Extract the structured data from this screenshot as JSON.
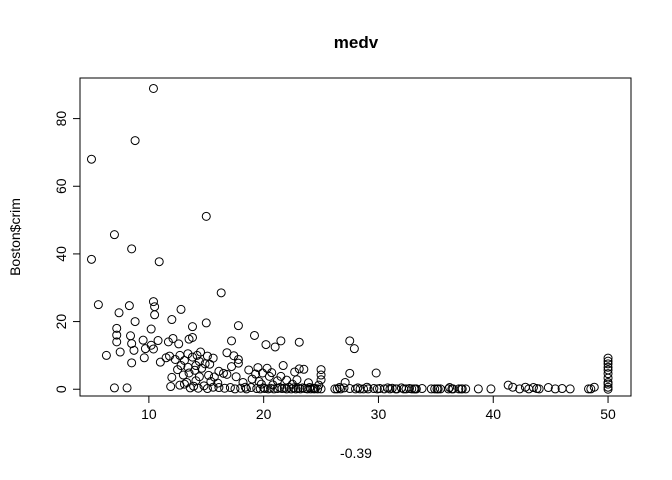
{
  "chart_data": {
    "type": "scatter",
    "title": "medv",
    "xlabel": "-0.39",
    "ylabel": "Boston$crim",
    "xlim": [
      4,
      52
    ],
    "ylim": [
      -2,
      92
    ],
    "x_ticks": [
      10,
      20,
      30,
      40,
      50
    ],
    "y_ticks": [
      0,
      20,
      40,
      60,
      80
    ],
    "grid": false,
    "legend": "none",
    "marker": "open-circle",
    "points": [
      [
        5.0,
        68.0
      ],
      [
        5.0,
        38.4
      ],
      [
        5.6,
        25.0
      ],
      [
        6.3,
        10.0
      ],
      [
        7.0,
        45.7
      ],
      [
        7.0,
        0.4
      ],
      [
        7.2,
        18.0
      ],
      [
        7.2,
        16.0
      ],
      [
        7.2,
        14.0
      ],
      [
        7.4,
        22.6
      ],
      [
        7.5,
        11.0
      ],
      [
        8.1,
        0.4
      ],
      [
        8.3,
        24.7
      ],
      [
        8.4,
        15.8
      ],
      [
        8.5,
        41.5
      ],
      [
        8.5,
        13.5
      ],
      [
        8.5,
        7.8
      ],
      [
        8.7,
        11.5
      ],
      [
        8.8,
        73.5
      ],
      [
        8.8,
        20.0
      ],
      [
        9.5,
        14.5
      ],
      [
        9.6,
        9.3
      ],
      [
        9.7,
        12.0
      ],
      [
        10.2,
        17.8
      ],
      [
        10.2,
        13.0
      ],
      [
        10.4,
        88.9
      ],
      [
        10.4,
        25.9
      ],
      [
        10.4,
        11.9
      ],
      [
        10.5,
        24.4
      ],
      [
        10.5,
        22.0
      ],
      [
        10.8,
        14.4
      ],
      [
        10.9,
        37.7
      ],
      [
        11.0,
        8.0
      ],
      [
        11.5,
        9.3
      ],
      [
        11.7,
        14.0
      ],
      [
        11.8,
        9.8
      ],
      [
        11.9,
        0.8
      ],
      [
        12.0,
        20.6
      ],
      [
        12.0,
        3.5
      ],
      [
        12.1,
        15.0
      ],
      [
        12.3,
        8.8
      ],
      [
        12.5,
        5.8
      ],
      [
        12.6,
        13.4
      ],
      [
        12.7,
        10.0
      ],
      [
        12.7,
        1.2
      ],
      [
        12.8,
        23.6
      ],
      [
        12.8,
        7.0
      ],
      [
        13.0,
        4.2
      ],
      [
        13.1,
        8.5
      ],
      [
        13.1,
        1.5
      ],
      [
        13.3,
        2.0
      ],
      [
        13.4,
        6.5
      ],
      [
        13.4,
        10.5
      ],
      [
        13.5,
        14.8
      ],
      [
        13.5,
        4.8
      ],
      [
        13.6,
        0.4
      ],
      [
        13.8,
        15.3
      ],
      [
        13.8,
        18.5
      ],
      [
        13.8,
        9.5
      ],
      [
        13.9,
        0.9
      ],
      [
        14.0,
        5.6
      ],
      [
        14.1,
        7.0
      ],
      [
        14.1,
        2.5
      ],
      [
        14.2,
        10.0
      ],
      [
        14.3,
        0.3
      ],
      [
        14.4,
        8.2
      ],
      [
        14.4,
        3.7
      ],
      [
        14.5,
        11.0
      ],
      [
        14.6,
        6.2
      ],
      [
        14.8,
        1.0
      ],
      [
        14.9,
        7.5
      ],
      [
        15.0,
        51.1
      ],
      [
        15.0,
        19.6
      ],
      [
        15.1,
        9.8
      ],
      [
        15.1,
        0.2
      ],
      [
        15.2,
        4.1
      ],
      [
        15.3,
        7.4
      ],
      [
        15.4,
        2.3
      ],
      [
        15.6,
        9.2
      ],
      [
        15.6,
        0.6
      ],
      [
        15.7,
        3.6
      ],
      [
        16.0,
        1.8
      ],
      [
        16.1,
        5.3
      ],
      [
        16.1,
        0.5
      ],
      [
        16.3,
        28.5
      ],
      [
        16.5,
        4.7
      ],
      [
        16.6,
        0.3
      ],
      [
        16.8,
        10.8
      ],
      [
        16.8,
        4.4
      ],
      [
        17.1,
        0.5
      ],
      [
        17.2,
        14.3
      ],
      [
        17.2,
        6.7
      ],
      [
        17.4,
        9.9
      ],
      [
        17.5,
        0.1
      ],
      [
        17.6,
        3.7
      ],
      [
        17.8,
        18.8
      ],
      [
        17.8,
        8.8
      ],
      [
        17.8,
        7.7
      ],
      [
        18.0,
        0.3
      ],
      [
        18.2,
        2.0
      ],
      [
        18.4,
        0.6
      ],
      [
        18.5,
        0.1
      ],
      [
        18.7,
        5.7
      ],
      [
        18.9,
        0.5
      ],
      [
        19.0,
        3.0
      ],
      [
        19.2,
        15.9
      ],
      [
        19.3,
        4.5
      ],
      [
        19.4,
        0.2
      ],
      [
        19.5,
        6.4
      ],
      [
        19.6,
        2.3
      ],
      [
        19.7,
        0.1
      ],
      [
        19.8,
        1.5
      ],
      [
        19.9,
        4.8
      ],
      [
        20.0,
        0.4
      ],
      [
        20.1,
        0.2
      ],
      [
        20.2,
        13.2
      ],
      [
        20.3,
        6.2
      ],
      [
        20.4,
        0.1
      ],
      [
        20.5,
        3.8
      ],
      [
        20.6,
        0.3
      ],
      [
        20.7,
        4.9
      ],
      [
        20.8,
        1.3
      ],
      [
        20.9,
        0.1
      ],
      [
        21.0,
        12.5
      ],
      [
        21.2,
        2.5
      ],
      [
        21.2,
        0.2
      ],
      [
        21.4,
        0.5
      ],
      [
        21.5,
        14.3
      ],
      [
        21.5,
        3.8
      ],
      [
        21.6,
        0.2
      ],
      [
        21.7,
        7.0
      ],
      [
        21.8,
        0.3
      ],
      [
        22.0,
        0.1
      ],
      [
        22.0,
        2.7
      ],
      [
        22.2,
        0.6
      ],
      [
        22.4,
        0.1
      ],
      [
        22.5,
        1.5
      ],
      [
        22.6,
        0.4
      ],
      [
        22.7,
        5.1
      ],
      [
        22.8,
        0.1
      ],
      [
        22.9,
        2.8
      ],
      [
        23.0,
        0.3
      ],
      [
        23.1,
        13.9
      ],
      [
        23.1,
        6.0
      ],
      [
        23.2,
        0.1
      ],
      [
        23.4,
        0.4
      ],
      [
        23.5,
        5.9
      ],
      [
        23.6,
        0.2
      ],
      [
        23.8,
        0.1
      ],
      [
        23.9,
        1.9
      ],
      [
        24.0,
        0.5
      ],
      [
        24.1,
        0.1
      ],
      [
        24.3,
        0.3
      ],
      [
        24.4,
        0.1
      ],
      [
        24.5,
        0.2
      ],
      [
        24.7,
        0.1
      ],
      [
        24.8,
        1.2
      ],
      [
        25.0,
        5.8
      ],
      [
        25.0,
        4.2
      ],
      [
        25.0,
        2.8
      ],
      [
        25.0,
        0.1
      ],
      [
        26.2,
        0.1
      ],
      [
        26.4,
        0.1
      ],
      [
        26.6,
        0.5
      ],
      [
        26.7,
        0.1
      ],
      [
        27.0,
        0.4
      ],
      [
        27.1,
        2.0
      ],
      [
        27.5,
        14.3
      ],
      [
        27.5,
        4.7
      ],
      [
        27.5,
        0.2
      ],
      [
        27.9,
        12.0
      ],
      [
        28.0,
        0.1
      ],
      [
        28.2,
        0.4
      ],
      [
        28.4,
        0.1
      ],
      [
        28.7,
        0.1
      ],
      [
        29.0,
        0.6
      ],
      [
        29.1,
        0.1
      ],
      [
        29.6,
        0.2
      ],
      [
        29.8,
        4.8
      ],
      [
        29.9,
        0.1
      ],
      [
        30.1,
        0.2
      ],
      [
        30.5,
        0.1
      ],
      [
        30.8,
        0.4
      ],
      [
        31.0,
        0.1
      ],
      [
        31.2,
        0.3
      ],
      [
        31.5,
        0.1
      ],
      [
        31.6,
        0.1
      ],
      [
        32.0,
        0.4
      ],
      [
        32.2,
        0.1
      ],
      [
        32.4,
        0.1
      ],
      [
        32.7,
        0.2
      ],
      [
        32.9,
        0.1
      ],
      [
        33.1,
        0.1
      ],
      [
        33.2,
        0.1
      ],
      [
        33.3,
        0.1
      ],
      [
        33.8,
        0.2
      ],
      [
        34.6,
        0.1
      ],
      [
        34.9,
        0.1
      ],
      [
        35.1,
        0.1
      ],
      [
        35.2,
        0.1
      ],
      [
        35.4,
        0.1
      ],
      [
        36.1,
        0.1
      ],
      [
        36.2,
        0.5
      ],
      [
        36.4,
        0.1
      ],
      [
        36.5,
        0.1
      ],
      [
        37.0,
        0.1
      ],
      [
        37.2,
        0.1
      ],
      [
        37.3,
        0.1
      ],
      [
        37.6,
        0.1
      ],
      [
        38.7,
        0.1
      ],
      [
        39.8,
        0.1
      ],
      [
        41.3,
        1.2
      ],
      [
        41.7,
        0.6
      ],
      [
        42.3,
        0.1
      ],
      [
        42.8,
        0.6
      ],
      [
        43.1,
        0.1
      ],
      [
        43.5,
        0.5
      ],
      [
        43.8,
        0.2
      ],
      [
        44.0,
        0.1
      ],
      [
        44.8,
        0.5
      ],
      [
        45.4,
        0.1
      ],
      [
        46.0,
        0.2
      ],
      [
        46.7,
        0.1
      ],
      [
        48.3,
        0.1
      ],
      [
        48.5,
        0.1
      ],
      [
        48.8,
        0.6
      ],
      [
        50.0,
        9.2
      ],
      [
        50.0,
        8.3
      ],
      [
        50.0,
        7.5
      ],
      [
        50.0,
        6.5
      ],
      [
        50.0,
        5.7
      ],
      [
        50.0,
        4.6
      ],
      [
        50.0,
        3.3
      ],
      [
        50.0,
        2.0
      ],
      [
        50.0,
        1.5
      ],
      [
        50.0,
        0.6
      ],
      [
        50.0,
        0.0
      ]
    ]
  }
}
